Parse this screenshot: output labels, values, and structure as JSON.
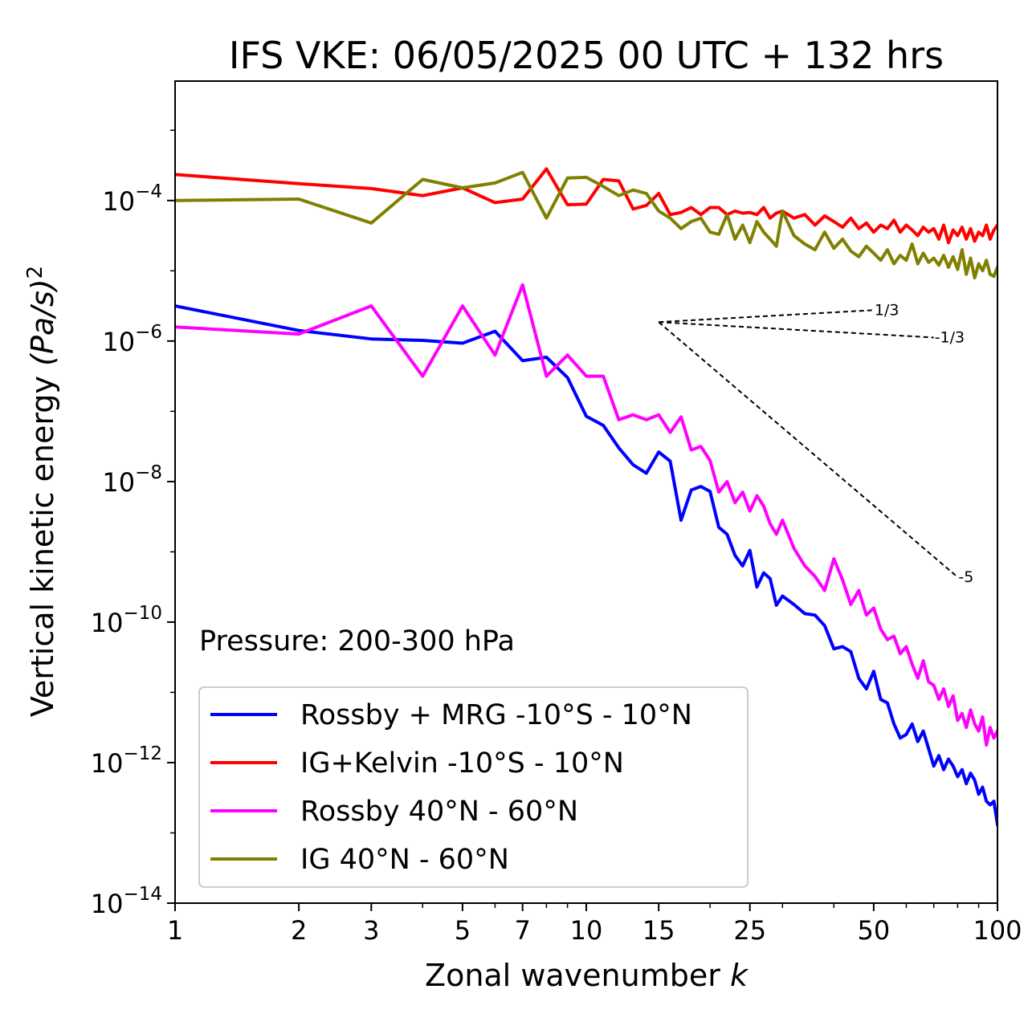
{
  "chart_data": {
    "type": "line",
    "title": "IFS VKE: 06/05/2025 00 UTC + 132 hrs",
    "xlabel": "Zonal wavenumber",
    "xlabel_var": "k",
    "ylabel": "Vertical kinetic energy",
    "ylabel_math": "(Pa/s)",
    "ylabel_sup": "2",
    "xscale": "log",
    "yscale": "log",
    "xlim": [
      1,
      100
    ],
    "ylim_log10": [
      -14,
      -2.3
    ],
    "x_ticks": [
      1,
      2,
      3,
      5,
      7,
      10,
      15,
      25,
      50,
      100
    ],
    "y_ticks_log10": [
      -14,
      -12,
      -10,
      -8,
      -6,
      -4
    ],
    "grid": false,
    "legend_location": "lower-left",
    "annotation": "Pressure: 200-300 hPa",
    "reference_slopes": [
      {
        "label": "1/3",
        "x": [
          15,
          50
        ],
        "log10_y": [
          -5.73,
          -5.56
        ]
      },
      {
        "label": "-1/3",
        "x": [
          15,
          70
        ],
        "log10_y": [
          -5.73,
          -5.95
        ]
      },
      {
        "label": "-5",
        "x": [
          15,
          80
        ],
        "log10_y": [
          -5.73,
          -9.36
        ]
      }
    ],
    "series": [
      {
        "name": "Rossby + MRG -10°S - 10°N",
        "color": "#0000ff",
        "x": [
          1,
          2,
          3,
          4,
          5,
          6,
          7,
          8,
          9,
          10,
          11,
          12,
          13,
          14,
          15,
          16,
          17,
          18,
          19,
          20,
          21,
          22,
          23,
          24,
          25,
          26,
          27,
          28,
          29,
          30,
          32,
          34,
          36,
          38,
          40,
          42,
          44,
          46,
          48,
          50,
          52,
          54,
          56,
          58,
          60,
          62,
          64,
          66,
          68,
          70,
          72,
          74,
          76,
          78,
          80,
          82,
          84,
          86,
          88,
          90,
          92,
          94,
          96,
          98,
          100
        ],
        "log10_y": [
          -5.5,
          -5.85,
          -5.97,
          -5.99,
          -6.03,
          -5.86,
          -6.28,
          -6.23,
          -6.52,
          -7.07,
          -7.2,
          -7.52,
          -7.76,
          -7.88,
          -7.58,
          -7.71,
          -8.55,
          -8.12,
          -8.07,
          -8.14,
          -8.65,
          -8.75,
          -9.05,
          -9.2,
          -8.98,
          -9.5,
          -9.3,
          -9.38,
          -9.76,
          -9.63,
          -9.75,
          -9.88,
          -9.9,
          -10.05,
          -10.38,
          -10.35,
          -10.42,
          -10.8,
          -10.95,
          -10.7,
          -11.1,
          -11.15,
          -11.45,
          -11.65,
          -11.6,
          -11.45,
          -11.7,
          -11.55,
          -11.8,
          -12.05,
          -11.9,
          -12.1,
          -11.95,
          -12.05,
          -12.2,
          -12.1,
          -12.3,
          -12.15,
          -12.25,
          -12.45,
          -12.35,
          -12.55,
          -12.6,
          -12.55,
          -12.88
        ]
      },
      {
        "name": "IG+Kelvin -10°S - 10°N",
        "color": "#ff0000",
        "x": [
          1,
          2,
          3,
          4,
          5,
          6,
          7,
          8,
          9,
          10,
          11,
          12,
          13,
          14,
          15,
          16,
          17,
          18,
          19,
          20,
          21,
          22,
          23,
          24,
          25,
          26,
          27,
          28,
          29,
          30,
          32,
          34,
          36,
          38,
          40,
          42,
          44,
          46,
          48,
          50,
          52,
          54,
          56,
          58,
          60,
          62,
          64,
          66,
          68,
          70,
          72,
          74,
          76,
          78,
          80,
          82,
          84,
          86,
          88,
          90,
          92,
          94,
          96,
          98,
          100
        ],
        "log10_y": [
          -3.63,
          -3.76,
          -3.83,
          -3.93,
          -3.82,
          -4.03,
          -3.98,
          -3.55,
          -4.06,
          -4.05,
          -3.7,
          -3.72,
          -4.12,
          -4.07,
          -3.9,
          -4.2,
          -4.17,
          -4.1,
          -4.2,
          -4.1,
          -4.1,
          -4.2,
          -4.15,
          -4.18,
          -4.17,
          -4.2,
          -4.1,
          -4.25,
          -4.18,
          -4.15,
          -4.25,
          -4.2,
          -4.35,
          -4.22,
          -4.3,
          -4.38,
          -4.25,
          -4.4,
          -4.32,
          -4.45,
          -4.35,
          -4.4,
          -4.28,
          -4.45,
          -4.35,
          -4.42,
          -4.5,
          -4.38,
          -4.45,
          -4.4,
          -4.55,
          -4.35,
          -4.6,
          -4.42,
          -4.5,
          -4.38,
          -4.55,
          -4.4,
          -4.58,
          -4.45,
          -4.5,
          -4.35,
          -4.55,
          -4.42,
          -4.35
        ]
      },
      {
        "name": "Rossby 40°N - 60°N",
        "color": "#ff00ff",
        "x": [
          1,
          2,
          3,
          4,
          5,
          6,
          7,
          8,
          9,
          10,
          11,
          12,
          13,
          14,
          15,
          16,
          17,
          18,
          19,
          20,
          21,
          22,
          23,
          24,
          25,
          26,
          27,
          28,
          29,
          30,
          32,
          34,
          36,
          38,
          40,
          42,
          44,
          46,
          48,
          50,
          52,
          54,
          56,
          58,
          60,
          62,
          64,
          66,
          68,
          70,
          72,
          74,
          76,
          78,
          80,
          82,
          84,
          86,
          88,
          90,
          92,
          94,
          96,
          98,
          100
        ],
        "log10_y": [
          -5.8,
          -5.9,
          -5.5,
          -6.5,
          -5.5,
          -6.2,
          -5.2,
          -6.5,
          -6.2,
          -6.5,
          -6.5,
          -7.12,
          -7.05,
          -7.12,
          -7.05,
          -7.3,
          -7.08,
          -7.55,
          -7.5,
          -7.7,
          -8.15,
          -8.0,
          -8.3,
          -8.15,
          -8.42,
          -8.2,
          -8.35,
          -8.6,
          -8.75,
          -8.55,
          -8.95,
          -9.2,
          -9.35,
          -9.55,
          -9.1,
          -9.4,
          -9.75,
          -9.55,
          -9.9,
          -9.8,
          -10.1,
          -10.25,
          -10.2,
          -10.45,
          -10.35,
          -10.6,
          -10.8,
          -10.55,
          -10.85,
          -10.9,
          -11.1,
          -10.95,
          -11.2,
          -11.05,
          -11.4,
          -11.3,
          -11.5,
          -11.25,
          -11.45,
          -11.55,
          -11.35,
          -11.75,
          -11.5,
          -11.65,
          -11.55
        ]
      },
      {
        "name": "IG 40°N - 60°N",
        "color": "#808000",
        "x": [
          1,
          2,
          3,
          4,
          5,
          6,
          7,
          8,
          9,
          10,
          11,
          12,
          13,
          14,
          15,
          16,
          17,
          18,
          19,
          20,
          21,
          22,
          23,
          24,
          25,
          26,
          27,
          28,
          29,
          30,
          32,
          34,
          36,
          38,
          40,
          42,
          44,
          46,
          48,
          50,
          52,
          54,
          56,
          58,
          60,
          62,
          64,
          66,
          68,
          70,
          72,
          74,
          76,
          78,
          80,
          82,
          84,
          86,
          88,
          90,
          92,
          94,
          96,
          98,
          100
        ],
        "log10_y": [
          -4.0,
          -3.98,
          -4.32,
          -3.7,
          -3.82,
          -3.75,
          -3.6,
          -4.25,
          -3.68,
          -3.67,
          -3.8,
          -3.93,
          -3.85,
          -3.9,
          -4.15,
          -4.25,
          -4.4,
          -4.3,
          -4.25,
          -4.45,
          -4.48,
          -4.2,
          -4.55,
          -4.35,
          -4.6,
          -4.3,
          -4.45,
          -4.55,
          -4.65,
          -4.15,
          -4.5,
          -4.62,
          -4.7,
          -4.45,
          -4.68,
          -4.55,
          -4.72,
          -4.8,
          -4.65,
          -4.75,
          -4.85,
          -4.7,
          -4.9,
          -4.78,
          -4.85,
          -4.62,
          -4.9,
          -4.75,
          -4.88,
          -4.82,
          -4.92,
          -4.78,
          -4.95,
          -4.8,
          -4.98,
          -4.7,
          -5.05,
          -4.82,
          -5.1,
          -4.9,
          -5.0,
          -4.85,
          -5.05,
          -5.08,
          -4.95
        ]
      }
    ]
  }
}
